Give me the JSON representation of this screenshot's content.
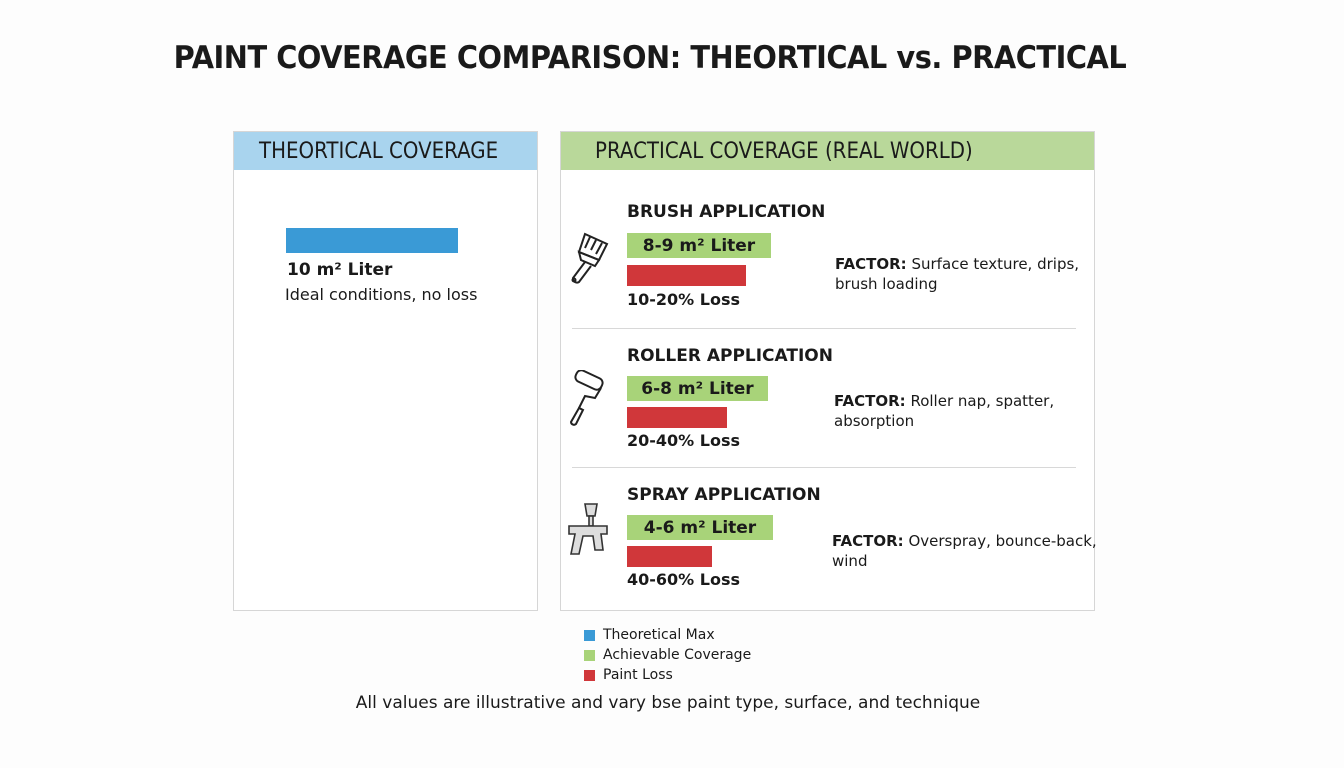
{
  "title": "PAINT COVERAGE COMPARISON: THEORTICAL vs. PRACTICAL",
  "left": {
    "header": "THEORTICAL COVERAGE",
    "value": "10 m² Liter",
    "note": "Ideal conditions, no loss"
  },
  "right": {
    "header": "PRACTICAL COVERAGE (REAL WORLD)",
    "rows": [
      {
        "name": "BRUSH APPLICATION",
        "icon": "paintbrush-icon",
        "coverage": "8-9 m² Liter",
        "loss": "10-20% Loss",
        "factor_label": "FACTOR:",
        "factor_text": "Surface texture, drips,",
        "factor_text2": "brush loading"
      },
      {
        "name": "ROLLER APPLICATION",
        "icon": "paint-roller-icon",
        "coverage": "6-8 m² Liter",
        "loss": "20-40% Loss",
        "factor_label": "FACTOR:",
        "factor_text": "Roller nap, spatter,",
        "factor_text2": "absorption"
      },
      {
        "name": "SPRAY APPLICATION",
        "icon": "spray-gun-icon",
        "coverage": "4-6 m² Liter",
        "loss": "40-60% Loss",
        "factor_label": "FACTOR:",
        "factor_text": "Overspray, bounce-back,",
        "factor_text2": "wind"
      }
    ]
  },
  "legend": [
    {
      "label": "Theoretical Max",
      "color": "#3a9ad6"
    },
    {
      "label": "Achievable Coverage",
      "color": "#a8d379"
    },
    {
      "label": "Paint Loss",
      "color": "#d0373a"
    }
  ],
  "footnote": "All values are illustrative and vary bse paint type, surface, and technique",
  "chart_data": {
    "type": "bar",
    "categories": [
      "Theoretical",
      "Brush",
      "Roller",
      "Spray"
    ],
    "series": [
      {
        "name": "Theoretical Max",
        "values": [
          10,
          null,
          null,
          null
        ]
      },
      {
        "name": "Achievable Coverage",
        "values": [
          null,
          [
            8,
            9
          ],
          [
            6,
            8
          ],
          [
            4,
            6
          ]
        ]
      },
      {
        "name": "Paint Loss",
        "values": [
          0,
          [
            10,
            20
          ],
          [
            20,
            40
          ],
          [
            40,
            60
          ]
        ]
      }
    ],
    "units": {
      "coverage": "m² Liter",
      "loss": "%"
    }
  },
  "colors": {
    "theoretical_header": "#a9d4ee",
    "practical_header": "#b9d89a"
  }
}
